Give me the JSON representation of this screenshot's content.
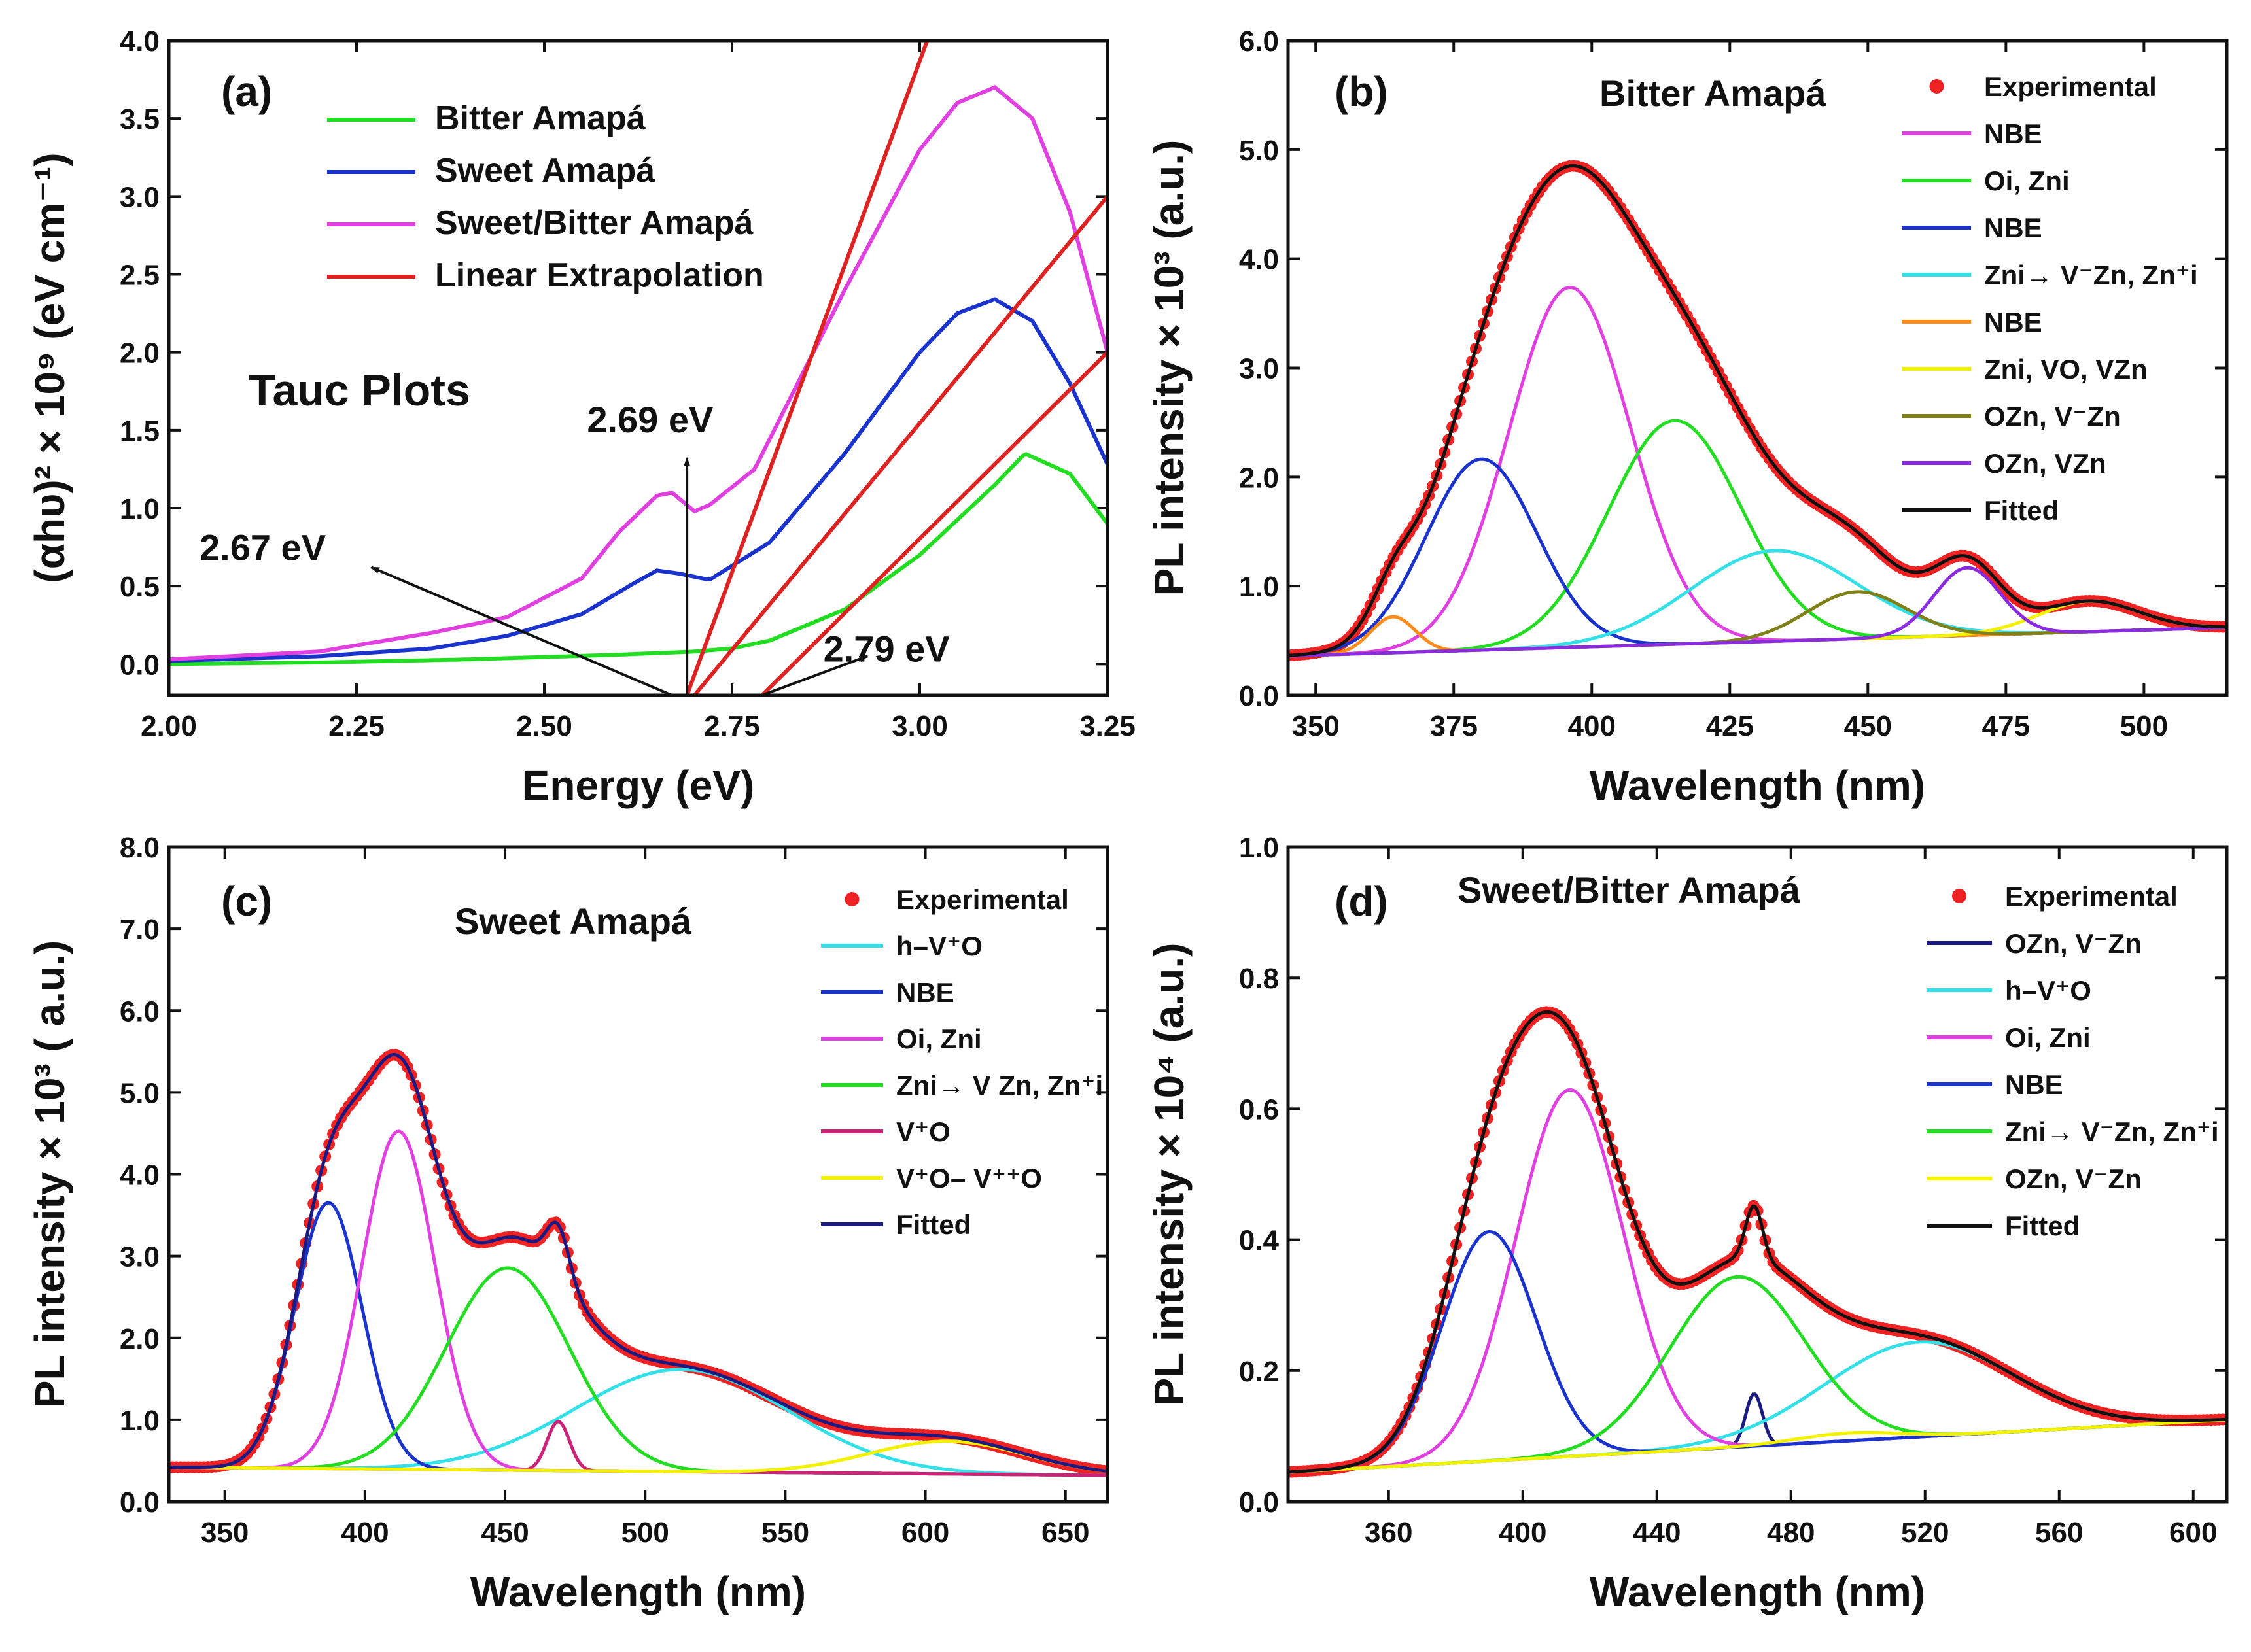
{
  "chart_data": [
    {
      "panel": "(a)",
      "type": "line",
      "title": "Tauc Plots",
      "xlabel": "Energy (eV)",
      "ylabel": "(αhυ)² × 10⁹ (eV cm⁻¹)",
      "xlim": [
        2.0,
        3.25
      ],
      "ylim": [
        -0.2,
        4.0
      ],
      "xticks": [
        "2.00",
        "2.25",
        "2.50",
        "2.75",
        "3.00",
        "3.25"
      ],
      "yticks": [
        "0.0",
        "0.5",
        "1.0",
        "1.5",
        "2.0",
        "2.5",
        "3.0",
        "3.5",
        "4.0"
      ],
      "series": [
        {
          "name": "Bitter Amapá",
          "color": "#22dd22",
          "x": [
            2.0,
            2.2,
            2.4,
            2.6,
            2.7,
            2.75,
            2.8,
            2.9,
            3.0,
            3.1,
            3.14,
            3.2,
            3.25
          ],
          "y": [
            0.0,
            0.01,
            0.03,
            0.06,
            0.08,
            0.1,
            0.15,
            0.35,
            0.7,
            1.15,
            1.35,
            1.22,
            0.9
          ]
        },
        {
          "name": "Sweet Amapá",
          "color": "#1a33cc",
          "x": [
            2.0,
            2.2,
            2.35,
            2.45,
            2.55,
            2.62,
            2.65,
            2.68,
            2.72,
            2.8,
            2.9,
            3.0,
            3.05,
            3.1,
            3.15,
            3.2,
            3.25
          ],
          "y": [
            0.02,
            0.05,
            0.1,
            0.18,
            0.32,
            0.52,
            0.6,
            0.58,
            0.54,
            0.78,
            1.35,
            2.0,
            2.25,
            2.34,
            2.2,
            1.8,
            1.28
          ]
        },
        {
          "name": "Sweet/Bitter Amapá",
          "color": "#e040e0",
          "x": [
            2.0,
            2.2,
            2.35,
            2.45,
            2.55,
            2.6,
            2.65,
            2.67,
            2.7,
            2.72,
            2.78,
            2.9,
            3.0,
            3.05,
            3.1,
            3.15,
            3.2,
            3.25
          ],
          "y": [
            0.03,
            0.08,
            0.2,
            0.3,
            0.55,
            0.85,
            1.08,
            1.1,
            0.98,
            1.02,
            1.25,
            2.4,
            3.3,
            3.6,
            3.7,
            3.5,
            2.9,
            2.0
          ]
        },
        {
          "name": "Linear Extrapolation",
          "color": "#dd2222",
          "x": [],
          "y": []
        }
      ],
      "extrapolation_lines": [
        {
          "x": [
            2.69,
            3.01
          ],
          "y": [
            -0.2,
            4.0
          ]
        },
        {
          "x": [
            2.7,
            3.25
          ],
          "y": [
            -0.2,
            3.0
          ]
        },
        {
          "x": [
            2.79,
            3.25
          ],
          "y": [
            -0.2,
            2.0
          ]
        }
      ],
      "annotations": [
        {
          "text": "2.69 eV",
          "x": 2.705,
          "y": 1.55
        },
        {
          "text": "2.67 eV",
          "x": 2.25,
          "y": 0.75
        },
        {
          "text": "2.79 eV",
          "x": 2.95,
          "y": 0.1
        }
      ]
    },
    {
      "panel": "(b)",
      "type": "line",
      "title": "Bitter Amapá",
      "xlabel": "Wavelength (nm)",
      "ylabel": "PL intensity × 10³ (a.u.)",
      "xlim": [
        345,
        515
      ],
      "ylim": [
        0,
        6.0
      ],
      "xticks": [
        "350",
        "375",
        "400",
        "425",
        "450",
        "475",
        "500"
      ],
      "yticks": [
        "0.0",
        "1.0",
        "2.0",
        "3.0",
        "4.0",
        "5.0",
        "6.0"
      ],
      "baseline": {
        "start": 0.36,
        "end": 0.62
      },
      "gaussians": [
        {
          "name": "NBE",
          "color": "#e040e0",
          "amp": 3.3,
          "center": 396,
          "sigma": 11
        },
        {
          "name": "Oᵢ, Znᵢ",
          "color": "#22dd22",
          "amp": 2.05,
          "center": 415,
          "sigma": 12
        },
        {
          "name": "NBE",
          "color": "#1a33cc",
          "amp": 1.75,
          "center": 380,
          "sigma": 10
        },
        {
          "name": "Znᵢ→ V⁻Zn, Zn⁺ᵢ",
          "color": "#33e0e8",
          "amp": 0.83,
          "center": 433,
          "sigma": 15
        },
        {
          "name": "NBE",
          "color": "#ff8c1a",
          "amp": 0.33,
          "center": 364,
          "sigma": 4
        },
        {
          "name": "Znᵢ, VO, VZn",
          "color": "#f2f200",
          "amp": 0.28,
          "center": 490,
          "sigma": 9
        },
        {
          "name": "OZn, V⁻Zn",
          "color": "#808018",
          "amp": 0.43,
          "center": 448,
          "sigma": 9
        },
        {
          "name": "OZn, VZn",
          "color": "#8a2be2",
          "amp": 0.62,
          "center": 468,
          "sigma": 6
        }
      ],
      "legend": [
        {
          "label": "Experimental",
          "color": "#ee2222",
          "kind": "dot"
        },
        {
          "label": "NBE",
          "color": "#e040e0"
        },
        {
          "label": "Oi, Zni",
          "color": "#22dd22"
        },
        {
          "label": "NBE",
          "color": "#1a33cc"
        },
        {
          "label": "Zni→ V⁻Zn, Zn⁺i",
          "color": "#33e0e8"
        },
        {
          "label": "NBE",
          "color": "#ff8c1a"
        },
        {
          "label": "Zni, VO, VZn",
          "color": "#f2f200"
        },
        {
          "label": "OZn, V⁻Zn",
          "color": "#808018"
        },
        {
          "label": "OZn, VZn",
          "color": "#8a2be2"
        },
        {
          "label": "Fitted",
          "color": "#111111"
        }
      ]
    },
    {
      "panel": "(c)",
      "type": "line",
      "title": "Sweet Amapá",
      "xlabel": "Wavelength (nm)",
      "ylabel": "PL intensity × 10³ ( a.u.)",
      "xlim": [
        330,
        665
      ],
      "ylim": [
        0,
        8.0
      ],
      "xticks": [
        "350",
        "400",
        "450",
        "500",
        "550",
        "600",
        "650"
      ],
      "yticks": [
        "0.0",
        "1.0",
        "2.0",
        "3.0",
        "4.0",
        "5.0",
        "6.0",
        "7.0",
        "8.0"
      ],
      "baseline": {
        "start": 0.42,
        "end": 0.32
      },
      "gaussians": [
        {
          "name": "h–V⁺O",
          "color": "#33e0e8",
          "amp": 1.25,
          "center": 513,
          "sigma": 38
        },
        {
          "name": "NBE",
          "color": "#1a33cc",
          "amp": 3.25,
          "center": 387,
          "sigma": 12
        },
        {
          "name": "Oᵢ, Znᵢ",
          "color": "#e040e0",
          "amp": 4.13,
          "center": 412,
          "sigma": 13
        },
        {
          "name": "Znᵢ→ VZn, Zn⁺ᵢ",
          "color": "#22dd22",
          "amp": 2.47,
          "center": 451,
          "sigma": 22
        },
        {
          "name": "V⁺O",
          "color": "#cc2277",
          "amp": 0.6,
          "center": 469,
          "sigma": 4
        },
        {
          "name": "V⁺O– V⁺⁺O",
          "color": "#f2f200",
          "amp": 0.4,
          "center": 608,
          "sigma": 28
        }
      ],
      "legend": [
        {
          "label": "Experimental",
          "color": "#ee2222",
          "kind": "dot"
        },
        {
          "label": "h–V⁺O",
          "color": "#33e0e8"
        },
        {
          "label": "NBE",
          "color": "#1a33cc"
        },
        {
          "label": "Oi, Zni",
          "color": "#e040e0"
        },
        {
          "label": "Zni→ V Zn, Zn⁺i",
          "color": "#22dd22"
        },
        {
          "label": "V⁺O",
          "color": "#cc2277"
        },
        {
          "label": "V⁺O– V⁺⁺O",
          "color": "#f2f200"
        },
        {
          "label": "Fitted",
          "color": "#1a1a80"
        }
      ]
    },
    {
      "panel": "(d)",
      "type": "line",
      "title": "Sweet/Bitter Amapá",
      "xlabel": "Wavelength (nm)",
      "ylabel": "PL intensity × 10⁴ (a.u.)",
      "xlim": [
        330,
        610
      ],
      "ylim": [
        0,
        1.0
      ],
      "xticks": [
        "360",
        "400",
        "440",
        "480",
        "520",
        "560",
        "600"
      ],
      "yticks": [
        "0.0",
        "0.2",
        "0.4",
        "0.6",
        "0.8",
        "1.0"
      ],
      "baseline": {
        "start": 0.045,
        "end": 0.125
      },
      "gaussians": [
        {
          "name": "OZn, V⁻Zn",
          "color": "#1a1a80",
          "amp": 0.08,
          "center": 469,
          "sigma": 2.5
        },
        {
          "name": "h–V⁺O",
          "color": "#33e0e8",
          "amp": 0.145,
          "center": 518,
          "sigma": 28
        },
        {
          "name": "Oᵢ, Znᵢ",
          "color": "#e040e0",
          "amp": 0.56,
          "center": 414,
          "sigma": 16
        },
        {
          "name": "NBE",
          "color": "#1a33cc",
          "amp": 0.35,
          "center": 390,
          "sigma": 14
        },
        {
          "name": "Znᵢ→ V⁻Zn, Zn⁺ᵢ",
          "color": "#22dd22",
          "amp": 0.26,
          "center": 464,
          "sigma": 20
        },
        {
          "name": "OZn, V⁻Zn",
          "color": "#f2f200",
          "amp": 0.012,
          "center": 497,
          "sigma": 15
        }
      ],
      "legend": [
        {
          "label": "Experimental",
          "color": "#ee2222",
          "kind": "dot"
        },
        {
          "label": "OZn, V⁻Zn",
          "color": "#1a1a80"
        },
        {
          "label": "h–V⁺O",
          "color": "#33e0e8"
        },
        {
          "label": "Oi, Zni",
          "color": "#e040e0"
        },
        {
          "label": "NBE",
          "color": "#1a33cc"
        },
        {
          "label": "Zni→ V⁻Zn, Zn⁺i",
          "color": "#22dd22"
        },
        {
          "label": "OZn, V⁻Zn",
          "color": "#f2f200"
        },
        {
          "label": "Fitted",
          "color": "#111111"
        }
      ]
    }
  ]
}
